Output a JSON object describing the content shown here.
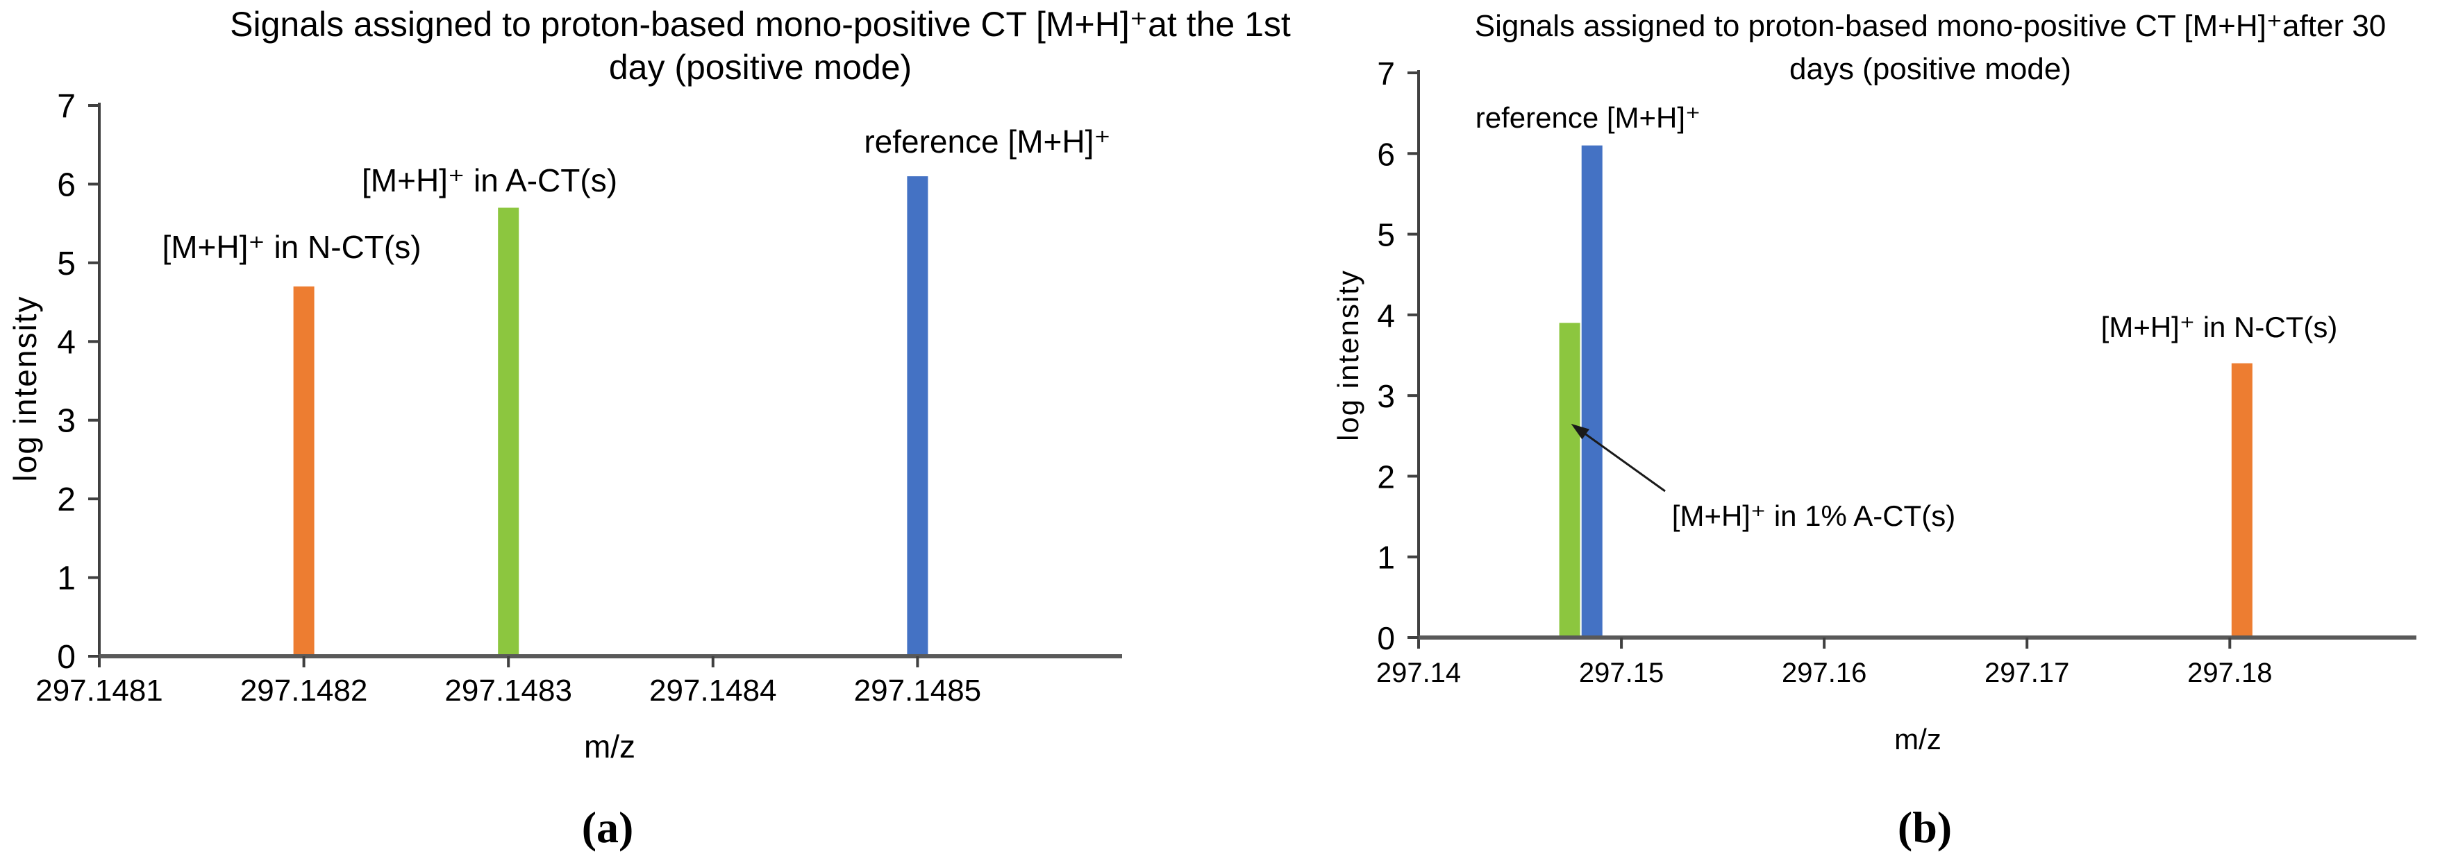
{
  "figure": {
    "captions": {
      "a": "(a)",
      "b": "(b)"
    }
  },
  "chart_data": [
    {
      "type": "bar",
      "panel": "a",
      "title": "Signals assigned to proton-based mono-positive CT [M+H]⁺at the 1st day (positive mode)",
      "title_lines": [
        "Signals assigned to proton-based mono-positive CT [M+H]⁺at the 1st",
        "day (positive mode)"
      ],
      "xlabel": "m/z",
      "ylabel": "log intensity",
      "ylim": [
        0,
        7
      ],
      "yticks": [
        0,
        1,
        2,
        3,
        4,
        5,
        6,
        7
      ],
      "xlim": [
        297.1481,
        297.1486
      ],
      "xticks": [
        {
          "mz": 297.1481,
          "label": "297.1481"
        },
        {
          "mz": 297.1482,
          "label": "297.1482"
        },
        {
          "mz": 297.1483,
          "label": "297.1483"
        },
        {
          "mz": 297.1484,
          "label": "297.1484"
        },
        {
          "mz": 297.1485,
          "label": "297.1485"
        }
      ],
      "grid": false,
      "legend": false,
      "bars": [
        {
          "label": "[M+H]⁺ in N-CT(s)",
          "mz": 297.1482,
          "log_intensity": 4.7,
          "color": "#ED7D31"
        },
        {
          "label": "[M+H]⁺ in A-CT(s)",
          "mz": 297.1483,
          "log_intensity": 5.7,
          "color": "#8CC63F"
        },
        {
          "label": "reference [M+H]⁺",
          "mz": 297.1485,
          "log_intensity": 6.1,
          "color": "#4472C4"
        }
      ]
    },
    {
      "type": "bar",
      "panel": "b",
      "title": "Signals assigned to proton-based mono-positive CT [M+H]⁺after 30 days (positive mode)",
      "title_lines": [
        "Signals assigned to proton-based mono-positive CT [M+H]⁺after 30",
        "days (positive mode)"
      ],
      "xlabel": "m/z",
      "ylabel": "log intensity",
      "ylim": [
        0,
        7
      ],
      "yticks": [
        0,
        1,
        2,
        3,
        4,
        5,
        6,
        7
      ],
      "xlim": [
        297.14,
        297.1892
      ],
      "xticks": [
        {
          "mz": 297.14,
          "label": "297.14"
        },
        {
          "mz": 297.15,
          "label": "297.15"
        },
        {
          "mz": 297.16,
          "label": "297.16"
        },
        {
          "mz": 297.17,
          "label": "297.17"
        },
        {
          "mz": 297.18,
          "label": "297.18"
        }
      ],
      "grid": false,
      "legend": false,
      "bars": [
        {
          "label": "[M+H]⁺ in 1% A-CT(s)",
          "mz": 297.14745,
          "log_intensity": 3.9,
          "color": "#8CC63F"
        },
        {
          "label": "reference [M+H]⁺",
          "mz": 297.14855,
          "log_intensity": 6.1,
          "color": "#4472C4"
        },
        {
          "label": "[M+H]⁺ in N-CT(s)",
          "mz": 297.1806,
          "log_intensity": 3.4,
          "color": "#ED7D31"
        }
      ],
      "annotation": {
        "text": "[M+H]⁺ in 1% A-CT(s)",
        "points_to_mz": 297.14745,
        "points_to_log_intensity": 2.65
      }
    }
  ],
  "style": {
    "axis_color": "#595959",
    "tick_color": "#404040",
    "text_color": "#000000"
  }
}
